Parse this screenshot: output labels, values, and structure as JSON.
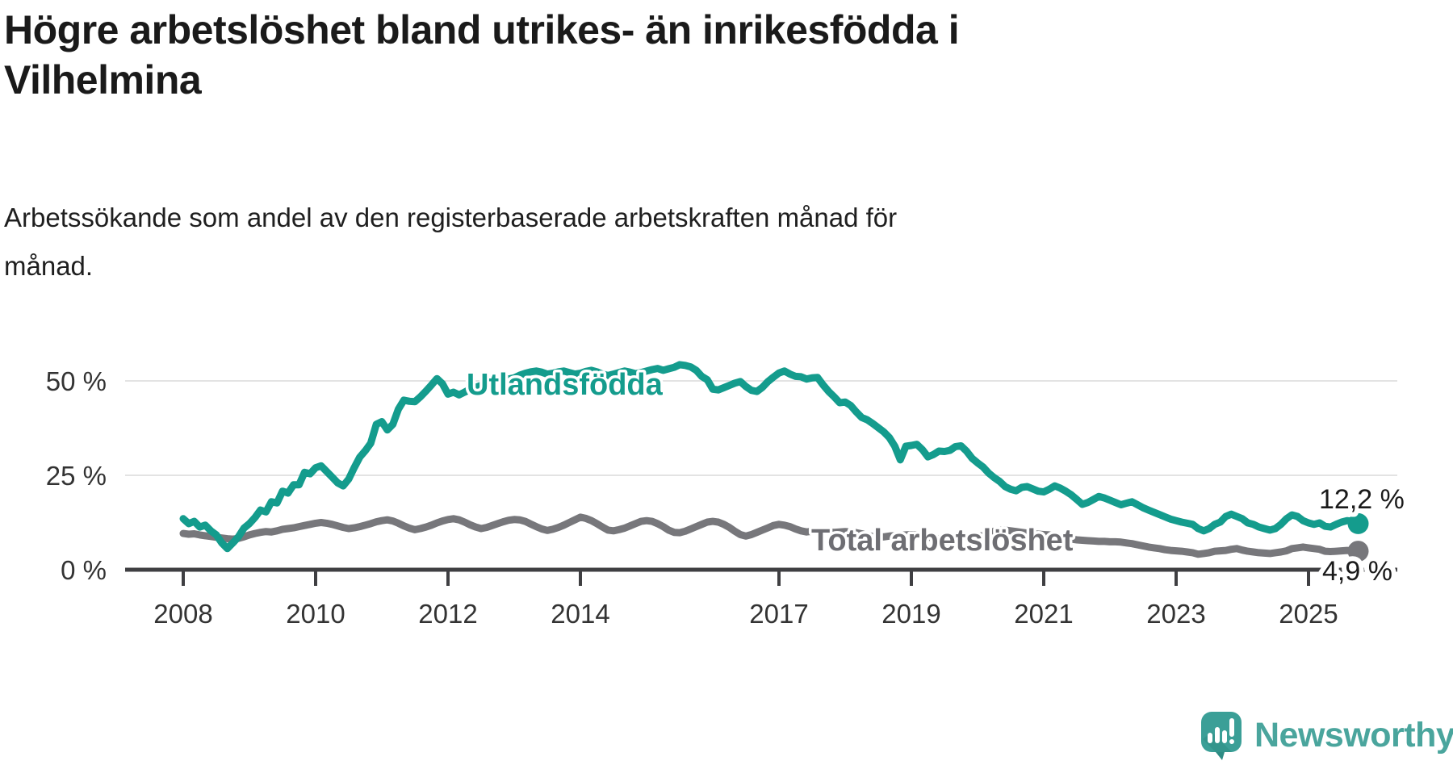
{
  "title_lines": [
    "Högre arbetslöshet bland utrikes- än inrikesfödda i",
    "Vilhelmina"
  ],
  "subtitle_lines": [
    "Arbetssökande som andel av den registerbaserade arbetskraften månad för",
    "månad."
  ],
  "branding": {
    "name": "Newsworthy",
    "logo_color": "#3b9f97",
    "logo_dark": "#2e8c84",
    "text_color": "#4aa59d"
  },
  "colors": {
    "background": "#ffffff",
    "title": "#1a1a1a",
    "axis_text": "#333333",
    "axis_line": "#3f3f42",
    "gridline": "#e3e3e3",
    "utlandsfodda": "#149c8d",
    "total": "#77777b",
    "total_label": "#6e6e73",
    "end_label": "#1a1a1a"
  },
  "chart_data": {
    "type": "line",
    "frequency": "monthly",
    "x_start": "2008-01",
    "x_end": "2025-10",
    "grid": true,
    "legend": "inline-labels",
    "ylim": [
      0,
      55
    ],
    "yticks": [
      {
        "value": 0,
        "label": "0 %"
      },
      {
        "value": 25,
        "label": "25 %"
      },
      {
        "value": 50,
        "label": "50 %"
      }
    ],
    "xticks": [
      {
        "year": 2008,
        "label": "2008"
      },
      {
        "year": 2010,
        "label": "2010"
      },
      {
        "year": 2012,
        "label": "2012"
      },
      {
        "year": 2014,
        "label": "2014"
      },
      {
        "year": 2017,
        "label": "2017"
      },
      {
        "year": 2019,
        "label": "2019"
      },
      {
        "year": 2021,
        "label": "2021"
      },
      {
        "year": 2023,
        "label": "2023"
      },
      {
        "year": 2025,
        "label": "2025"
      }
    ],
    "series": [
      {
        "name": "Utlandsfödda",
        "color": "#149c8d",
        "end_value": 12.2,
        "end_label": "12,2 %",
        "values": [
          13.5,
          12.2,
          12.8,
          11.3,
          11.8,
          10.3,
          9.2,
          7.1,
          5.6,
          7.1,
          8.7,
          11.0,
          12.2,
          13.8,
          15.8,
          15.3,
          18.0,
          17.7,
          20.8,
          20.3,
          22.5,
          22.5,
          25.8,
          25.4,
          27.0,
          27.5,
          26.0,
          24.5,
          23.0,
          22.2,
          24.0,
          27.0,
          29.8,
          31.5,
          33.5,
          38.5,
          39.2,
          37.0,
          38.5,
          42.5,
          44.9,
          44.6,
          44.5,
          45.8,
          47.3,
          48.9,
          50.6,
          49.2,
          46.5,
          47.0,
          46.3,
          47.0,
          47.8,
          48.3,
          48.8,
          49.2,
          49.8,
          50.3,
          50.8,
          50.5,
          50.8,
          51.5,
          52.0,
          52.4,
          52.6,
          52.3,
          51.8,
          52.0,
          52.4,
          52.6,
          52.2,
          51.8,
          52.0,
          52.5,
          52.8,
          52.4,
          51.8,
          51.4,
          51.8,
          52.2,
          52.6,
          52.3,
          51.9,
          52.2,
          52.6,
          53.0,
          53.3,
          52.8,
          53.2,
          53.6,
          54.3,
          54.1,
          53.7,
          52.8,
          51.2,
          50.3,
          47.8,
          47.6,
          48.2,
          48.8,
          49.4,
          49.8,
          48.5,
          47.5,
          47.2,
          48.3,
          49.8,
          51.0,
          52.1,
          52.6,
          51.8,
          51.2,
          51.1,
          50.5,
          50.8,
          50.9,
          48.9,
          47.2,
          45.8,
          44.2,
          44.4,
          43.5,
          41.8,
          40.3,
          39.7,
          38.7,
          37.6,
          36.5,
          35.0,
          32.7,
          29.1,
          32.7,
          32.9,
          33.2,
          31.8,
          29.9,
          30.5,
          31.4,
          31.3,
          31.6,
          32.6,
          32.8,
          31.4,
          29.5,
          28.3,
          27.2,
          25.6,
          24.4,
          23.4,
          22.0,
          21.3,
          20.9,
          21.8,
          22.0,
          21.4,
          20.8,
          20.6,
          21.3,
          22.2,
          21.6,
          20.8,
          19.8,
          18.6,
          17.3,
          17.8,
          18.6,
          19.4,
          19.0,
          18.4,
          17.8,
          17.2,
          17.6,
          18.0,
          17.2,
          16.4,
          15.8,
          15.2,
          14.6,
          14.0,
          13.4,
          13.0,
          12.6,
          12.3,
          12.0,
          10.9,
          10.3,
          10.9,
          12.0,
          12.6,
          14.1,
          14.7,
          14.1,
          13.5,
          12.4,
          12.0,
          11.3,
          10.9,
          10.5,
          10.9,
          12.0,
          13.5,
          14.5,
          14.1,
          13.0,
          12.4,
          12.0,
          12.4,
          11.5,
          11.3,
          12.0,
          12.6,
          13.0,
          12.8,
          12.2
        ]
      },
      {
        "name": "Total arbetslöshet",
        "color": "#77777b",
        "end_value": 4.9,
        "end_label": "4,9 %",
        "values": [
          9.6,
          9.4,
          9.5,
          9.2,
          9.0,
          8.8,
          8.6,
          8.4,
          8.2,
          8.1,
          8.3,
          8.7,
          9.2,
          9.6,
          9.9,
          10.1,
          10.0,
          10.3,
          10.7,
          10.9,
          11.1,
          11.4,
          11.7,
          12.0,
          12.3,
          12.5,
          12.3,
          12.0,
          11.6,
          11.2,
          10.9,
          11.1,
          11.4,
          11.8,
          12.2,
          12.7,
          13.0,
          13.2,
          12.9,
          12.3,
          11.6,
          11.0,
          10.6,
          10.9,
          11.3,
          11.8,
          12.4,
          12.9,
          13.3,
          13.5,
          13.2,
          12.6,
          11.9,
          11.3,
          10.9,
          11.2,
          11.7,
          12.2,
          12.7,
          13.1,
          13.3,
          13.2,
          12.8,
          12.1,
          11.4,
          10.8,
          10.4,
          10.7,
          11.2,
          11.8,
          12.5,
          13.2,
          13.9,
          13.6,
          13.0,
          12.2,
          11.3,
          10.5,
          10.3,
          10.6,
          11.0,
          11.6,
          12.2,
          12.8,
          13.0,
          12.8,
          12.2,
          11.4,
          10.5,
          9.9,
          9.8,
          10.2,
          10.8,
          11.4,
          12.0,
          12.6,
          12.8,
          12.6,
          12.0,
          11.2,
          10.2,
          9.3,
          8.9,
          9.3,
          9.9,
          10.5,
          11.1,
          11.7,
          12.0,
          11.8,
          11.4,
          10.8,
          10.3,
          10.0,
          10.2,
          10.4,
          10.2,
          10.0,
          9.9,
          10.0,
          10.1,
          10.0,
          9.8,
          9.5,
          9.1,
          8.8,
          8.6,
          8.7,
          8.9,
          9.0,
          9.1,
          9.2,
          9.3,
          9.2,
          9.0,
          8.7,
          8.4,
          8.2,
          8.1,
          8.2,
          8.4,
          8.5,
          8.6,
          8.7,
          8.9,
          9.0,
          9.6,
          10.2,
          10.4,
          10.5,
          10.3,
          10.1,
          9.9,
          9.7,
          9.5,
          9.4,
          9.3,
          9.2,
          9.0,
          8.7,
          8.4,
          8.1,
          7.9,
          7.8,
          7.7,
          7.6,
          7.5,
          7.5,
          7.4,
          7.4,
          7.3,
          7.1,
          6.9,
          6.6,
          6.3,
          6.0,
          5.8,
          5.6,
          5.3,
          5.1,
          5.0,
          4.9,
          4.7,
          4.5,
          4.1,
          4.3,
          4.5,
          4.9,
          5.0,
          5.1,
          5.4,
          5.6,
          5.2,
          4.9,
          4.7,
          4.5,
          4.4,
          4.3,
          4.5,
          4.7,
          5.0,
          5.6,
          5.8,
          6.0,
          5.8,
          5.6,
          5.4,
          4.9,
          4.8,
          4.9,
          5.0,
          5.1,
          5.0,
          4.9
        ]
      }
    ]
  }
}
